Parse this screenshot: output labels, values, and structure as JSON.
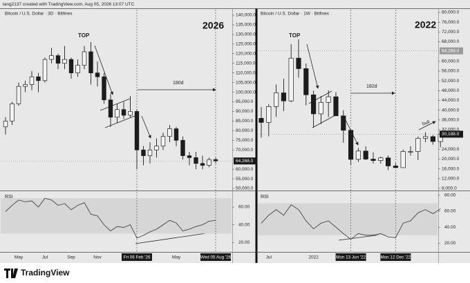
{
  "header": "tang2137 created with TradingView.com, Aug 05, 2026 13:07 UTC",
  "footer": "TradingView",
  "chart_data": [
    {
      "type": "candlestick",
      "title": "Bitcoin / U.S. Dollar · 3D · Bitfinex",
      "watermark": "2026",
      "annotations": [
        "TOP",
        "180d"
      ],
      "color": "#1c1c1c",
      "categories": [
        null,
        null,
        "May",
        null,
        null,
        null,
        "Jul",
        null,
        null,
        null,
        "Sep",
        null,
        null,
        null,
        "Nov",
        null,
        null,
        null,
        null,
        null,
        {
          "label": "Fri 06 Feb '26",
          "highlight": true
        },
        null,
        null,
        null,
        null,
        null,
        "May",
        null,
        null,
        null,
        null,
        null,
        {
          "label": "Wed 05 Aug '26",
          "highlight": true
        }
      ],
      "open": [
        82000,
        85000,
        94000,
        103000,
        104000,
        108000,
        106000,
        117000,
        119000,
        115000,
        117000,
        110000,
        114000,
        121000,
        110000,
        108000,
        96000,
        87000,
        91000,
        88000,
        90000,
        70000,
        67000,
        70000,
        72000,
        77000,
        81000,
        75000,
        67000,
        66000,
        63000,
        62000,
        65000
      ],
      "high": [
        87000,
        95000,
        105000,
        106000,
        111000,
        110000,
        118000,
        123000,
        120000,
        124000,
        118000,
        117000,
        124000,
        126000,
        116000,
        110000,
        99000,
        94000,
        95000,
        98000,
        91000,
        72000,
        74000,
        76000,
        79000,
        83000,
        82000,
        77000,
        69000,
        69000,
        67000,
        66000,
        66000
      ],
      "low": [
        78000,
        83000,
        93000,
        100000,
        101000,
        100000,
        105000,
        115000,
        112000,
        112000,
        107000,
        108000,
        112000,
        104000,
        103000,
        94000,
        82000,
        84000,
        86000,
        87000,
        60000,
        62000,
        63000,
        66000,
        70000,
        74000,
        72000,
        65000,
        62000,
        60000,
        60000,
        61000,
        63000
      ],
      "close": [
        85000,
        94000,
        103000,
        104000,
        108000,
        106000,
        117000,
        119000,
        115000,
        117000,
        110000,
        114000,
        121000,
        110000,
        108000,
        96000,
        87000,
        91000,
        88000,
        90000,
        70000,
        67000,
        70000,
        72000,
        77000,
        81000,
        75000,
        67000,
        66000,
        63000,
        62000,
        65000,
        64268
      ],
      "ylim": [
        50000,
        140000
      ],
      "yticks": [
        {
          "value": 140000,
          "label": "140,000.0"
        },
        {
          "value": 135000,
          "label": "135,000.0"
        },
        {
          "value": 130000,
          "label": "130,000.0"
        },
        {
          "value": 125000,
          "label": "125,000.0"
        },
        {
          "value": 120000,
          "label": "120,000.0"
        },
        {
          "value": 115000,
          "label": "115,000.0"
        },
        {
          "value": 110000,
          "label": "110,000.0"
        },
        {
          "value": 105000,
          "label": "105,000.0"
        },
        {
          "value": 100000,
          "label": "100,000.0"
        },
        {
          "value": 95000,
          "label": "95,000.0"
        },
        {
          "value": 90000,
          "label": "90,000.0"
        },
        {
          "value": 85000,
          "label": "85,000.0"
        },
        {
          "value": 80000,
          "label": "80,000.0"
        },
        {
          "value": 75000,
          "label": "75,000.0"
        },
        {
          "value": 70000,
          "label": "70,000.0"
        },
        {
          "value": 60000,
          "label": "60,000.0"
        },
        {
          "value": 55000,
          "label": "55,000.0"
        },
        {
          "value": 50000,
          "label": "50,000.0"
        }
      ],
      "price_labels": [
        {
          "value": 64268,
          "label": "64,268.0",
          "highlight": true
        }
      ],
      "rsi": {
        "label": "RSI",
        "values": [
          55,
          62,
          68,
          66,
          67,
          60,
          70,
          68,
          62,
          64,
          57,
          62,
          65,
          52,
          50,
          40,
          33,
          38,
          37,
          40,
          25,
          28,
          32,
          35,
          40,
          45,
          42,
          33,
          35,
          38,
          40,
          44,
          45
        ],
        "ylim": [
          10,
          78
        ],
        "yticks": [
          {
            "value": 60,
            "label": "60.00"
          },
          {
            "value": 40,
            "label": "40.00"
          },
          {
            "value": 20,
            "label": "20.00"
          }
        ],
        "band": [
          30,
          70
        ],
        "color": "#333333"
      }
    },
    {
      "type": "candlestick",
      "title": "Bitcoin / U.S. Dollar · 1W · Bitfinex",
      "watermark": "2022",
      "annotations": [
        "TOP",
        "182d",
        "bull"
      ],
      "color": "#1c1c1c",
      "categories": [
        null,
        "Jul",
        null,
        null,
        null,
        null,
        null,
        "2022",
        null,
        null,
        null,
        null,
        {
          "label": "Mon 13 Jun '22",
          "highlight": true
        },
        null,
        null,
        null,
        null,
        null,
        {
          "label": "Mon 12 Dec '22",
          "highlight": true
        },
        null,
        null,
        null,
        null,
        null,
        null
      ],
      "open": [
        36700,
        35000,
        41500,
        47100,
        43800,
        61300,
        57000,
        46300,
        38500,
        43200,
        45500,
        37700,
        31800,
        19900,
        23300,
        20000,
        19400,
        20500,
        17200,
        16500,
        23100,
        23100,
        28500,
        29200,
        27200
      ],
      "high": [
        41300,
        42400,
        50500,
        52900,
        67000,
        69000,
        59100,
        48000,
        45800,
        48200,
        47400,
        40000,
        31900,
        24600,
        25200,
        22800,
        21000,
        21500,
        18400,
        23900,
        25300,
        29200,
        31000,
        29800,
        31400
      ],
      "low": [
        28800,
        29300,
        37300,
        39600,
        43300,
        53300,
        42000,
        32900,
        34300,
        37200,
        37700,
        26700,
        17600,
        18800,
        19600,
        18200,
        18200,
        15500,
        16300,
        16500,
        21400,
        19600,
        26900,
        25900,
        24800
      ],
      "close": [
        35000,
        41500,
        47100,
        43800,
        61300,
        57000,
        46300,
        38500,
        43200,
        45500,
        37700,
        31800,
        19900,
        23300,
        20000,
        19400,
        20500,
        17200,
        16500,
        23100,
        23100,
        28500,
        29200,
        27200,
        30188
      ],
      "ylim": [
        8000,
        80000
      ],
      "yticks": [
        {
          "value": 80000,
          "label": "80,000.0"
        },
        {
          "value": 76000,
          "label": "76,000.0"
        },
        {
          "value": 72000,
          "label": "72,000.0"
        },
        {
          "value": 68000,
          "label": "68,000.0"
        },
        {
          "value": 60000,
          "label": "60,000.0"
        },
        {
          "value": 56000,
          "label": "56,000.0"
        },
        {
          "value": 52000,
          "label": "52,000.0"
        },
        {
          "value": 48000,
          "label": "48,000.0"
        },
        {
          "value": 44000,
          "label": "44,000.0"
        },
        {
          "value": 40000,
          "label": "40,000.0"
        },
        {
          "value": 36000,
          "label": "36,000.0"
        },
        {
          "value": 32000,
          "label": "32,000.0"
        },
        {
          "value": 24000,
          "label": "24,000.0"
        },
        {
          "value": 20000,
          "label": "20,000.0"
        },
        {
          "value": 16000,
          "label": "16,000.0"
        },
        {
          "value": 12000,
          "label": "12,000.0"
        },
        {
          "value": 8000,
          "label": "8,000.0"
        }
      ],
      "price_labels": [
        {
          "value": 64268,
          "label": "64,268.0",
          "highlight": false
        },
        {
          "value": 30188,
          "label": "30,188.0",
          "highlight": true
        }
      ],
      "rsi": {
        "label": "RSI",
        "values": [
          45,
          55,
          62,
          55,
          68,
          62,
          48,
          38,
          45,
          48,
          40,
          32,
          25,
          32,
          30,
          30,
          32,
          28,
          27,
          45,
          48,
          58,
          62,
          57,
          63
        ],
        "ylim": [
          10,
          85
        ],
        "yticks": [
          {
            "value": 80,
            "label": "80.00"
          },
          {
            "value": 60,
            "label": "60.00"
          },
          {
            "value": 40,
            "label": "40.00"
          },
          {
            "value": 20,
            "label": "20.00"
          }
        ],
        "band": [
          30,
          70
        ],
        "color": "#333333"
      }
    }
  ]
}
